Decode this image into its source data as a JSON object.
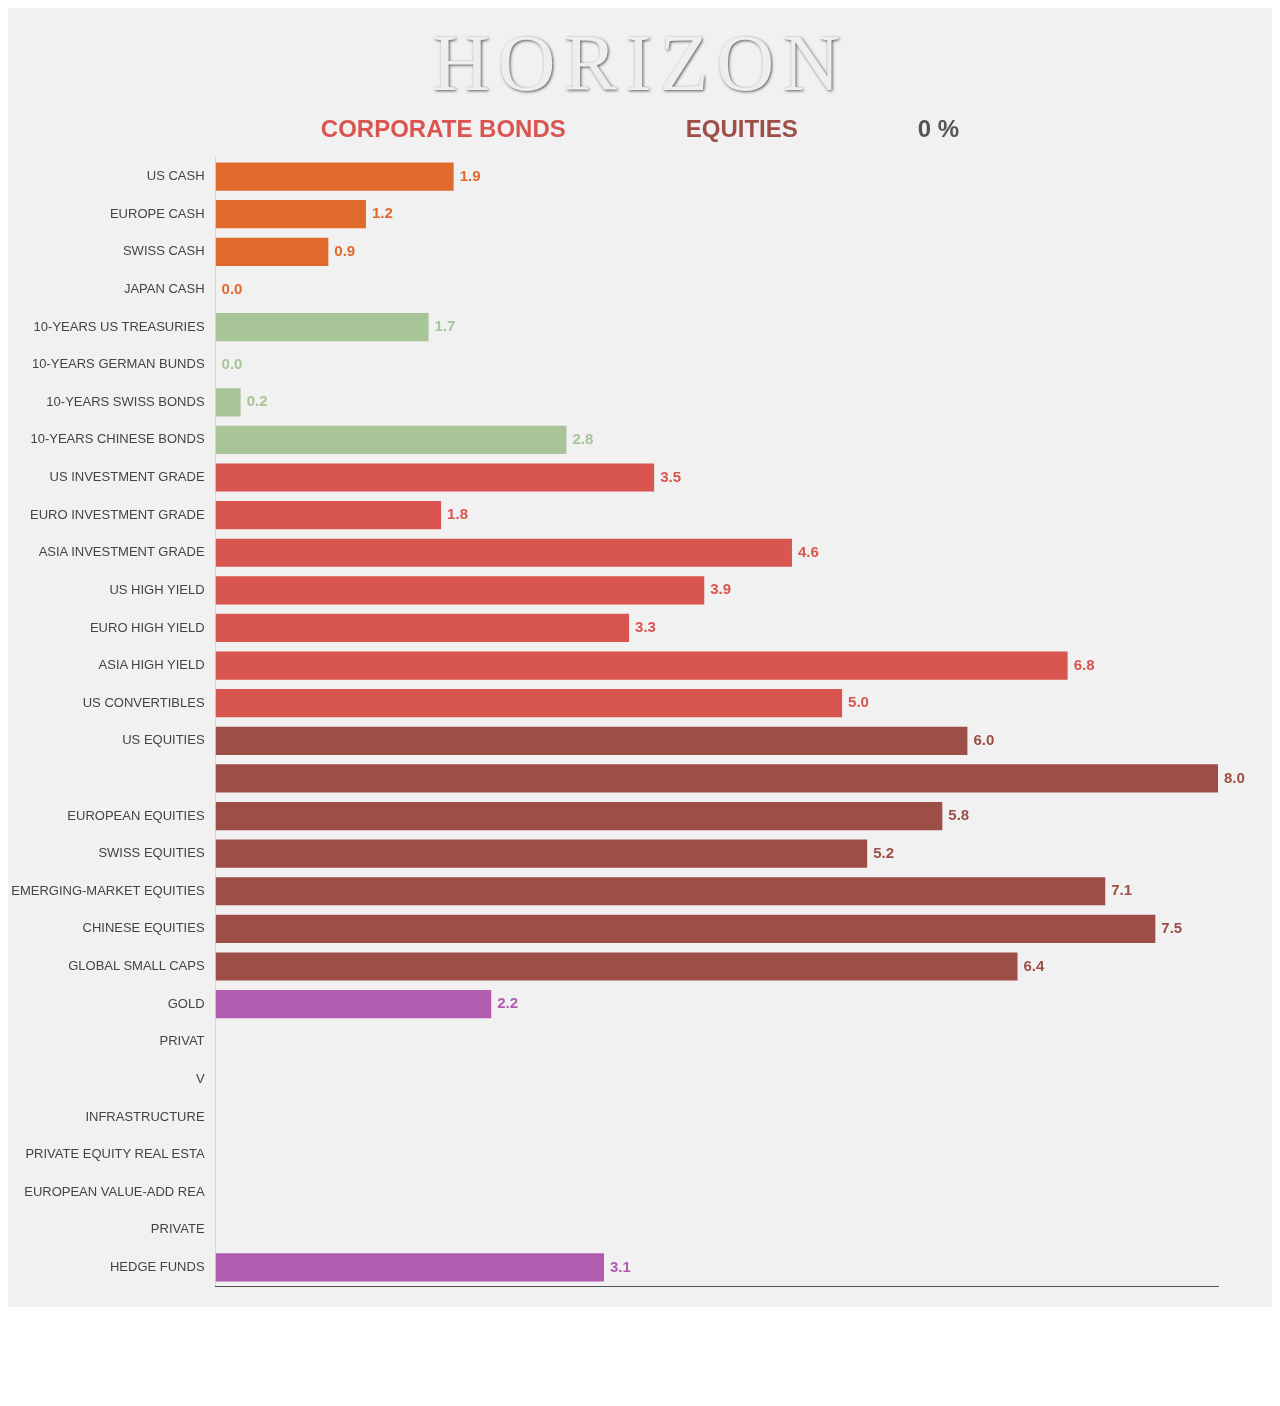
{
  "chart_data": {
    "type": "bar",
    "orientation": "horizontal",
    "title": "HORIZON",
    "annotations": [
      "CORPORATE BONDS",
      "EQUITIES",
      "0 %"
    ],
    "categories": [
      "US CASH",
      "EUROPE CASH",
      "SWISS CASH",
      "JAPAN CASH",
      "10-YEARS US TREASURIES",
      "10-YEARS GERMAN BUNDS",
      "10-YEARS SWISS BONDS",
      "10-YEARS CHINESE BONDS",
      "US INVESTMENT GRADE",
      "EURO INVESTMENT GRADE",
      "ASIA INVESTMENT GRADE",
      "US HIGH YIELD",
      "EURO HIGH YIELD",
      "ASIA HIGH YIELD",
      "US CONVERTIBLES",
      "US EQUITIES",
      null,
      "EUROPEAN EQUITIES",
      "SWISS EQUITIES",
      "EMERGING-MARKET EQUITIES",
      "CHINESE EQUITIES",
      "GLOBAL SMALL CAPS",
      "GOLD",
      "PRIVAT",
      "V",
      "INFRASTRUCTURE",
      "PRIVATE EQUITY REAL ESTA",
      "EUROPEAN VALUE-ADD REA",
      "PRIVATE",
      "HEDGE FUNDS"
    ],
    "values": [
      1.9,
      1.2,
      0.9,
      0.0,
      1.7,
      0.0,
      0.2,
      2.8,
      3.5,
      1.8,
      4.6,
      3.9,
      3.3,
      6.8,
      5.0,
      6.0,
      8.0,
      5.8,
      5.2,
      7.1,
      7.5,
      6.4,
      2.2,
      null,
      null,
      null,
      null,
      null,
      null,
      3.1
    ],
    "value_labels": [
      "1.9",
      "1.2",
      "0.9",
      "0.0",
      "1.7",
      "0.0",
      "0.2",
      "2.8",
      "3.5",
      "1.8",
      "4.6",
      "3.9",
      "3.3",
      "6.8",
      "5.0",
      "6.0",
      "8.0",
      "5.8",
      "5.2",
      "7.1",
      "7.5",
      "6.4",
      "2.2",
      null,
      null,
      null,
      null,
      null,
      null,
      "3.1"
    ],
    "colors": [
      "#e0692c",
      "#e0692c",
      "#e0692c",
      "#e0692c",
      "#a8c597",
      "#a8c597",
      "#a8c597",
      "#a8c597",
      "#d95550",
      "#d95550",
      "#d95550",
      "#d95550",
      "#d95550",
      "#d95550",
      "#d95550",
      "#9c4e47",
      "#9c4e47",
      "#9c4e47",
      "#9c4e47",
      "#9c4e47",
      "#9c4e47",
      "#9c4e47",
      "#b15cae",
      "#b15cae",
      "#b15cae",
      "#b15cae",
      "#b15cae",
      "#b15cae",
      "#b15cae",
      "#b15cae"
    ],
    "grid": false,
    "legend": false
  }
}
